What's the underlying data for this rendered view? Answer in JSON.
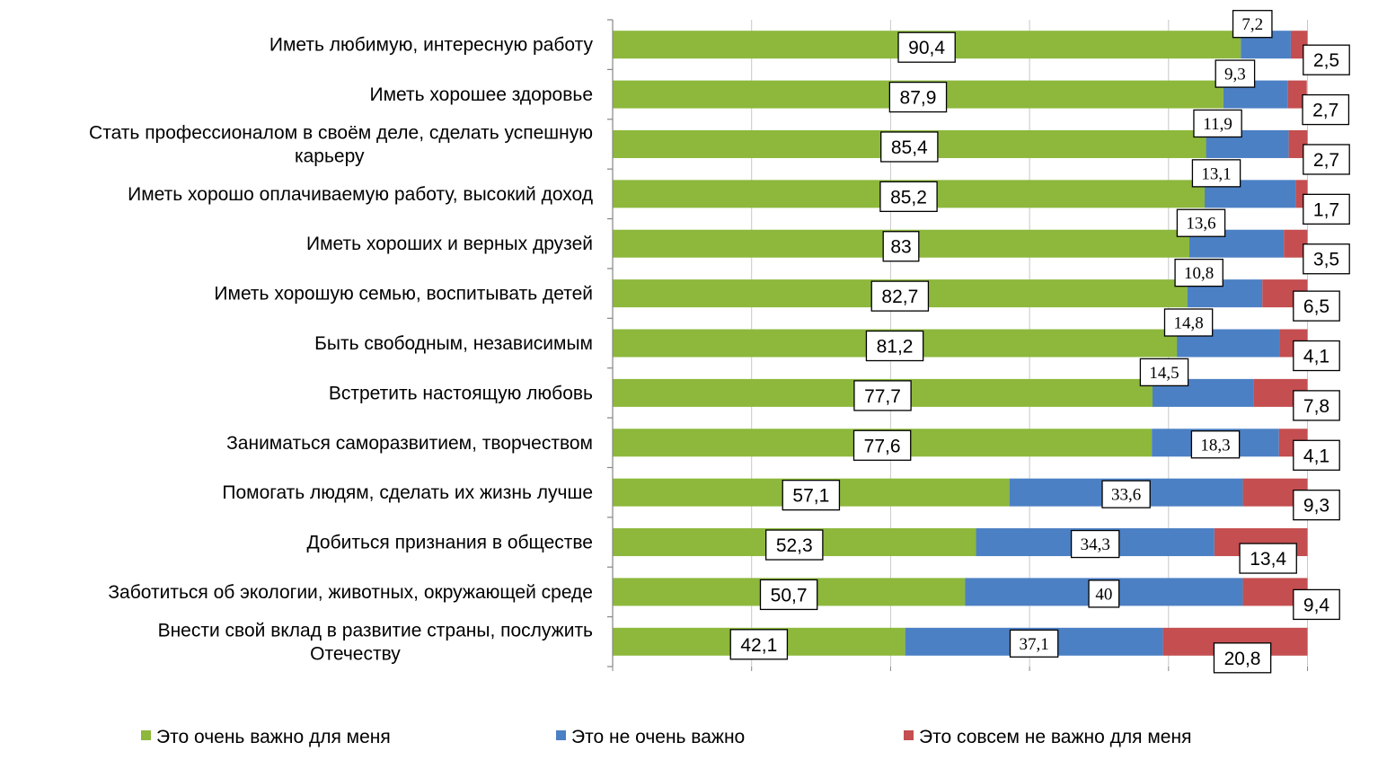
{
  "chart_data": {
    "type": "bar",
    "orientation": "horizontal",
    "stacked": true,
    "categories": [
      [
        "Иметь любимую, интересную работу"
      ],
      [
        "Иметь хорошее здоровье"
      ],
      [
        "Стать профессионалом в своём деле, сделать успешную",
        "карьеру"
      ],
      [
        "Иметь хорошо оплачиваемую работу, высокий доход"
      ],
      [
        "Иметь хороших и верных друзей"
      ],
      [
        "Иметь хорошую семью, воспитывать детей"
      ],
      [
        "Быть свободным, независимым"
      ],
      [
        "Встретить настоящую любовь"
      ],
      [
        "Заниматься саморазвитием, творчеством"
      ],
      [
        "Помогать людям, сделать их жизнь лучше"
      ],
      [
        "Добиться признания в обществе"
      ],
      [
        "Заботиться об экологии, животных, окружающей среде"
      ],
      [
        "Внести свой вклад в развитие страны, послужить",
        "Отечеству"
      ]
    ],
    "series": [
      {
        "name": "Это очень важно для меня",
        "color": "#8DB83C",
        "values": [
          90.4,
          87.9,
          85.4,
          85.2,
          83,
          82.7,
          81.2,
          77.7,
          77.6,
          57.1,
          52.3,
          50.7,
          42.1
        ],
        "labels": [
          "90,4",
          "87,9",
          "85,4",
          "85,2",
          "83",
          "82,7",
          "81,2",
          "77,7",
          "77,6",
          "57,1",
          "52,3",
          "50,7",
          "42,1"
        ]
      },
      {
        "name": "Это не очень важно",
        "color": "#4C80C4",
        "values": [
          7.2,
          9.3,
          11.9,
          13.1,
          13.6,
          10.8,
          14.8,
          14.5,
          18.3,
          33.6,
          34.3,
          40,
          37.1
        ],
        "labels": [
          "7,2",
          "9,3",
          "11,9",
          "13,1",
          "13,6",
          "10,8",
          "14,8",
          "14,5",
          "18,3",
          "33,6",
          "34,3",
          "40",
          "37,1"
        ]
      },
      {
        "name": "Это совсем не важно для меня",
        "color": "#C44E50",
        "values": [
          2.5,
          2.7,
          2.7,
          1.7,
          3.5,
          6.5,
          4.1,
          7.8,
          4.1,
          9.3,
          13.4,
          9.4,
          20.8
        ],
        "labels": [
          "2,5",
          "2,7",
          "2,7",
          "1,7",
          "3,5",
          "6,5",
          "4,1",
          "7,8",
          "4,1",
          "9,3",
          "13,4",
          "9,4",
          "20,8"
        ]
      }
    ],
    "xlim": [
      0,
      100
    ],
    "grid": "vertical",
    "legend": "bottom"
  }
}
